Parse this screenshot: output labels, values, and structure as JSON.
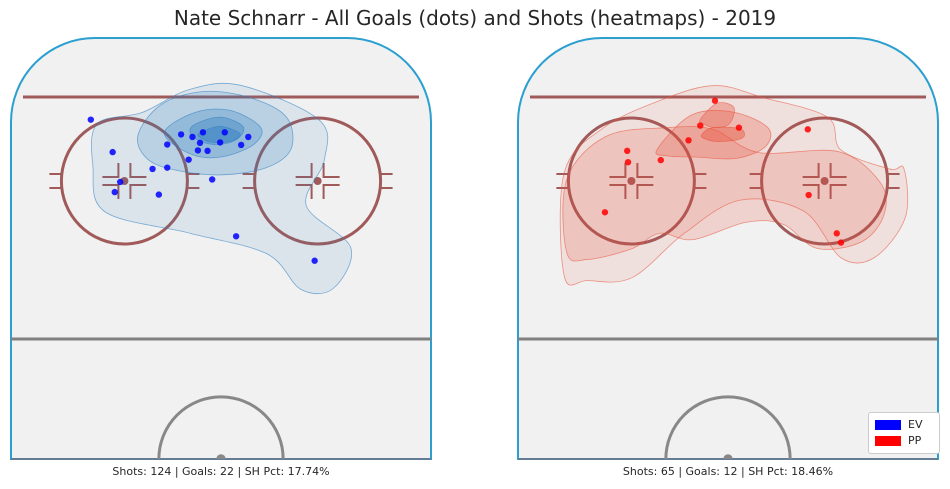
{
  "title": "Nate Schnarr - All Goals (dots) and Shots (heatmaps) - 2019",
  "colors": {
    "board": "#2a9fd0",
    "goal_line": "#a05a5a",
    "blue_line": "#808080",
    "ice": "#f1f1f1",
    "ev": "#0000ff",
    "pp": "#ff0000",
    "ev_heat": "#2f7ec1",
    "pp_heat": "#e8553e"
  },
  "legend": {
    "items": [
      {
        "label": "EV",
        "color": "#0000ff"
      },
      {
        "label": "PP",
        "color": "#ff0000"
      }
    ],
    "placement": "bottom-right"
  },
  "chart_data": [
    {
      "type": "scatter",
      "series": [
        {
          "name": "EV",
          "values": []
        }
      ],
      "caption": "Shots: 124 | Goals: 22 | SH Pct: 17.74%",
      "shots": 124,
      "goals": 22,
      "sh_pct": "17.74%",
      "goal_points": [
        [
          0.19,
          0.806
        ],
        [
          0.432,
          0.765
        ],
        [
          0.405,
          0.771
        ],
        [
          0.457,
          0.776
        ],
        [
          0.509,
          0.776
        ],
        [
          0.565,
          0.765
        ],
        [
          0.45,
          0.751
        ],
        [
          0.498,
          0.752
        ],
        [
          0.372,
          0.747
        ],
        [
          0.548,
          0.746
        ],
        [
          0.445,
          0.733
        ],
        [
          0.468,
          0.732
        ],
        [
          0.337,
          0.689
        ],
        [
          0.423,
          0.711
        ],
        [
          0.242,
          0.729
        ],
        [
          0.247,
          0.634
        ],
        [
          0.352,
          0.628
        ],
        [
          0.372,
          0.692
        ],
        [
          0.479,
          0.664
        ],
        [
          0.26,
          0.658
        ],
        [
          0.536,
          0.529
        ],
        [
          0.723,
          0.471
        ]
      ],
      "heat_levels": [
        {
          "opacity": 0.2,
          "polygon": [
            [
              0.205,
              0.796
            ],
            [
              0.312,
              0.823
            ],
            [
              0.426,
              0.878
            ],
            [
              0.549,
              0.887
            ],
            [
              0.734,
              0.805
            ],
            [
              0.746,
              0.71
            ],
            [
              0.703,
              0.602
            ],
            [
              0.809,
              0.502
            ],
            [
              0.767,
              0.405
            ],
            [
              0.69,
              0.403
            ],
            [
              0.61,
              0.487
            ],
            [
              0.427,
              0.536
            ],
            [
              0.224,
              0.587
            ],
            [
              0.195,
              0.695
            ]
          ]
        },
        {
          "opacity": 0.35,
          "polygon": [
            [
              0.302,
              0.768
            ],
            [
              0.358,
              0.842
            ],
            [
              0.459,
              0.873
            ],
            [
              0.57,
              0.858
            ],
            [
              0.656,
              0.812
            ],
            [
              0.667,
              0.737
            ],
            [
              0.608,
              0.692
            ],
            [
              0.504,
              0.675
            ],
            [
              0.403,
              0.684
            ],
            [
              0.328,
              0.71
            ]
          ]
        },
        {
          "opacity": 0.5,
          "polygon": [
            [
              0.365,
              0.775
            ],
            [
              0.438,
              0.823
            ],
            [
              0.522,
              0.828
            ],
            [
              0.595,
              0.787
            ],
            [
              0.575,
              0.745
            ],
            [
              0.497,
              0.717
            ],
            [
              0.426,
              0.725
            ]
          ]
        },
        {
          "opacity": 0.65,
          "polygon": [
            [
              0.432,
              0.791
            ],
            [
              0.497,
              0.812
            ],
            [
              0.553,
              0.789
            ],
            [
              0.534,
              0.757
            ],
            [
              0.481,
              0.747
            ],
            [
              0.434,
              0.765
            ]
          ]
        },
        {
          "opacity": 0.8,
          "polygon": [
            [
              0.449,
              0.774
            ],
            [
              0.497,
              0.79
            ],
            [
              0.545,
              0.773
            ],
            [
              0.524,
              0.755
            ],
            [
              0.481,
              0.752
            ],
            [
              0.451,
              0.763
            ]
          ]
        }
      ]
    },
    {
      "type": "scatter",
      "series": [
        {
          "name": "PP",
          "values": []
        }
      ],
      "caption": "Shots: 65 | Goals: 12 | SH Pct: 18.46%",
      "shots": 65,
      "goals": 12,
      "sh_pct": "18.46%",
      "goal_points": [
        [
          0.469,
          0.851
        ],
        [
          0.434,
          0.792
        ],
        [
          0.526,
          0.787
        ],
        [
          0.406,
          0.757
        ],
        [
          0.69,
          0.783
        ],
        [
          0.34,
          0.71
        ],
        [
          0.26,
          0.732
        ],
        [
          0.262,
          0.705
        ],
        [
          0.692,
          0.627
        ],
        [
          0.207,
          0.586
        ],
        [
          0.769,
          0.514
        ],
        [
          0.759,
          0.536
        ]
      ],
      "heat_levels": [
        {
          "opacity": 0.2,
          "polygon": [
            [
              0.11,
              0.435
            ],
            [
              0.11,
              0.68
            ],
            [
              0.204,
              0.787
            ],
            [
              0.352,
              0.857
            ],
            [
              0.471,
              0.887
            ],
            [
              0.582,
              0.859
            ],
            [
              0.737,
              0.812
            ],
            [
              0.769,
              0.734
            ],
            [
              0.884,
              0.689
            ],
            [
              0.919,
              0.689
            ],
            [
              0.922,
              0.573
            ],
            [
              0.848,
              0.478
            ],
            [
              0.769,
              0.478
            ],
            [
              0.68,
              0.589
            ],
            [
              0.529,
              0.615
            ],
            [
              0.396,
              0.536
            ],
            [
              0.272,
              0.431
            ],
            [
              0.166,
              0.424
            ]
          ]
        },
        {
          "opacity": 0.35,
          "polygon": [
            [
              0.116,
              0.491
            ],
            [
              0.116,
              0.664
            ],
            [
              0.209,
              0.766
            ],
            [
              0.354,
              0.787
            ],
            [
              0.464,
              0.783
            ],
            [
              0.573,
              0.728
            ],
            [
              0.763,
              0.73
            ],
            [
              0.863,
              0.656
            ],
            [
              0.872,
              0.582
            ],
            [
              0.82,
              0.517
            ],
            [
              0.713,
              0.5
            ],
            [
              0.63,
              0.558
            ],
            [
              0.542,
              0.562
            ],
            [
              0.417,
              0.521
            ],
            [
              0.337,
              0.536
            ],
            [
              0.27,
              0.499
            ],
            [
              0.166,
              0.474
            ]
          ]
        },
        {
          "opacity": 0.5,
          "polygon": [
            [
              0.331,
              0.735
            ],
            [
              0.413,
              0.817
            ],
            [
              0.512,
              0.824
            ],
            [
              0.595,
              0.787
            ],
            [
              0.589,
              0.742
            ],
            [
              0.52,
              0.714
            ],
            [
              0.427,
              0.717
            ],
            [
              0.355,
              0.72
            ]
          ]
        },
        {
          "opacity": 0.65,
          "polygon": [
            [
              0.434,
              0.806
            ],
            [
              0.474,
              0.845
            ],
            [
              0.514,
              0.835
            ],
            [
              0.503,
              0.796
            ],
            [
              0.469,
              0.787
            ],
            [
              0.444,
              0.795
            ]
          ]
        },
        {
          "opacity": 0.8,
          "polygon": [
            [
              0.437,
              0.77
            ],
            [
              0.464,
              0.787
            ],
            [
              0.527,
              0.785
            ],
            [
              0.539,
              0.768
            ],
            [
              0.521,
              0.758
            ],
            [
              0.476,
              0.754
            ],
            [
              0.446,
              0.76
            ]
          ]
        }
      ]
    }
  ]
}
